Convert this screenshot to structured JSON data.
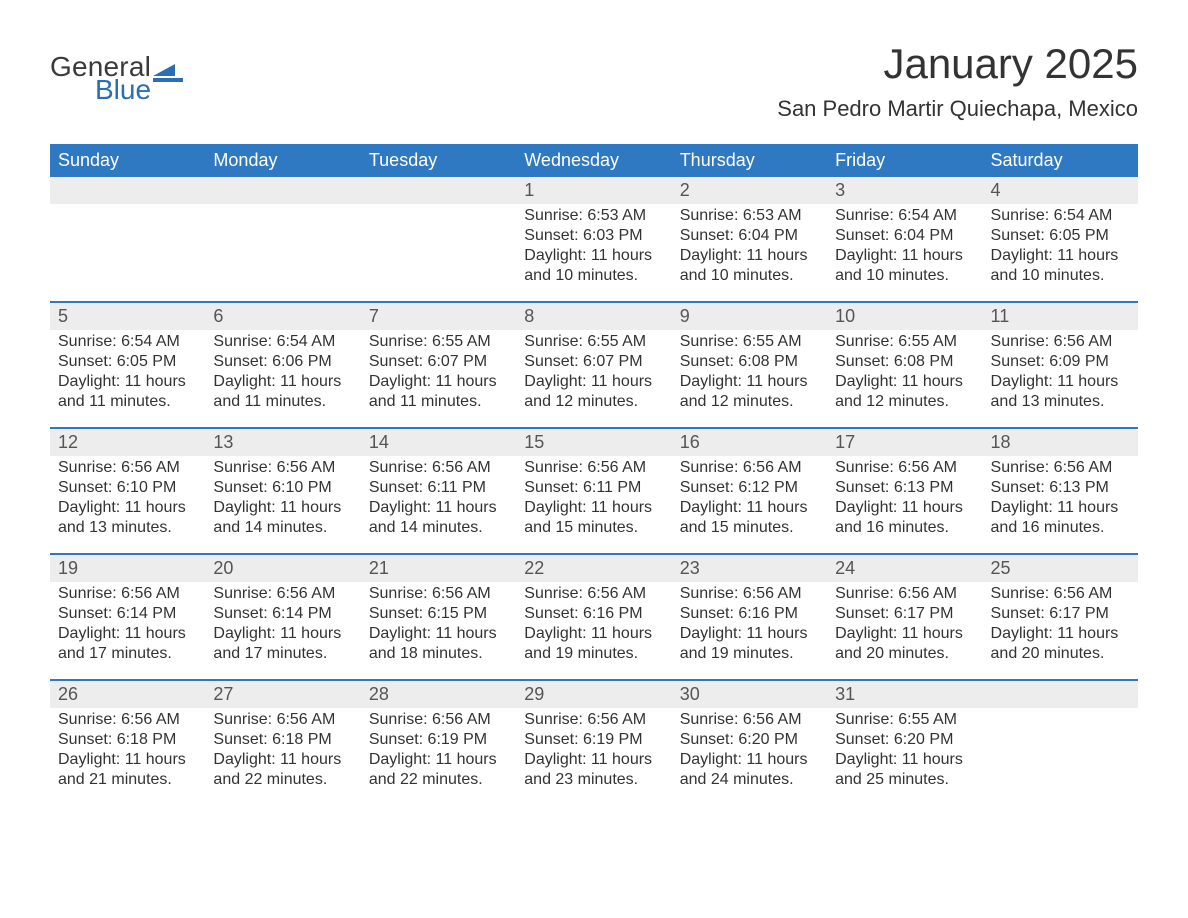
{
  "brand": {
    "word1": "General",
    "word2": "Blue"
  },
  "title": "January 2025",
  "location": "San Pedro Martir Quiechapa, Mexico",
  "colors": {
    "header_bg": "#2f79c2",
    "header_text": "#ffffff",
    "daynum_bg": "#ededed",
    "row_border": "#2f79c2",
    "text": "#333333",
    "brand_blue": "#2a6fb5"
  },
  "weekdays": [
    "Sunday",
    "Monday",
    "Tuesday",
    "Wednesday",
    "Thursday",
    "Friday",
    "Saturday"
  ],
  "weeks": [
    [
      null,
      null,
      null,
      {
        "n": "1",
        "sunrise": "Sunrise: 6:53 AM",
        "sunset": "Sunset: 6:03 PM",
        "d1": "Daylight: 11 hours",
        "d2": "and 10 minutes."
      },
      {
        "n": "2",
        "sunrise": "Sunrise: 6:53 AM",
        "sunset": "Sunset: 6:04 PM",
        "d1": "Daylight: 11 hours",
        "d2": "and 10 minutes."
      },
      {
        "n": "3",
        "sunrise": "Sunrise: 6:54 AM",
        "sunset": "Sunset: 6:04 PM",
        "d1": "Daylight: 11 hours",
        "d2": "and 10 minutes."
      },
      {
        "n": "4",
        "sunrise": "Sunrise: 6:54 AM",
        "sunset": "Sunset: 6:05 PM",
        "d1": "Daylight: 11 hours",
        "d2": "and 10 minutes."
      }
    ],
    [
      {
        "n": "5",
        "sunrise": "Sunrise: 6:54 AM",
        "sunset": "Sunset: 6:05 PM",
        "d1": "Daylight: 11 hours",
        "d2": "and 11 minutes."
      },
      {
        "n": "6",
        "sunrise": "Sunrise: 6:54 AM",
        "sunset": "Sunset: 6:06 PM",
        "d1": "Daylight: 11 hours",
        "d2": "and 11 minutes."
      },
      {
        "n": "7",
        "sunrise": "Sunrise: 6:55 AM",
        "sunset": "Sunset: 6:07 PM",
        "d1": "Daylight: 11 hours",
        "d2": "and 11 minutes."
      },
      {
        "n": "8",
        "sunrise": "Sunrise: 6:55 AM",
        "sunset": "Sunset: 6:07 PM",
        "d1": "Daylight: 11 hours",
        "d2": "and 12 minutes."
      },
      {
        "n": "9",
        "sunrise": "Sunrise: 6:55 AM",
        "sunset": "Sunset: 6:08 PM",
        "d1": "Daylight: 11 hours",
        "d2": "and 12 minutes."
      },
      {
        "n": "10",
        "sunrise": "Sunrise: 6:55 AM",
        "sunset": "Sunset: 6:08 PM",
        "d1": "Daylight: 11 hours",
        "d2": "and 12 minutes."
      },
      {
        "n": "11",
        "sunrise": "Sunrise: 6:56 AM",
        "sunset": "Sunset: 6:09 PM",
        "d1": "Daylight: 11 hours",
        "d2": "and 13 minutes."
      }
    ],
    [
      {
        "n": "12",
        "sunrise": "Sunrise: 6:56 AM",
        "sunset": "Sunset: 6:10 PM",
        "d1": "Daylight: 11 hours",
        "d2": "and 13 minutes."
      },
      {
        "n": "13",
        "sunrise": "Sunrise: 6:56 AM",
        "sunset": "Sunset: 6:10 PM",
        "d1": "Daylight: 11 hours",
        "d2": "and 14 minutes."
      },
      {
        "n": "14",
        "sunrise": "Sunrise: 6:56 AM",
        "sunset": "Sunset: 6:11 PM",
        "d1": "Daylight: 11 hours",
        "d2": "and 14 minutes."
      },
      {
        "n": "15",
        "sunrise": "Sunrise: 6:56 AM",
        "sunset": "Sunset: 6:11 PM",
        "d1": "Daylight: 11 hours",
        "d2": "and 15 minutes."
      },
      {
        "n": "16",
        "sunrise": "Sunrise: 6:56 AM",
        "sunset": "Sunset: 6:12 PM",
        "d1": "Daylight: 11 hours",
        "d2": "and 15 minutes."
      },
      {
        "n": "17",
        "sunrise": "Sunrise: 6:56 AM",
        "sunset": "Sunset: 6:13 PM",
        "d1": "Daylight: 11 hours",
        "d2": "and 16 minutes."
      },
      {
        "n": "18",
        "sunrise": "Sunrise: 6:56 AM",
        "sunset": "Sunset: 6:13 PM",
        "d1": "Daylight: 11 hours",
        "d2": "and 16 minutes."
      }
    ],
    [
      {
        "n": "19",
        "sunrise": "Sunrise: 6:56 AM",
        "sunset": "Sunset: 6:14 PM",
        "d1": "Daylight: 11 hours",
        "d2": "and 17 minutes."
      },
      {
        "n": "20",
        "sunrise": "Sunrise: 6:56 AM",
        "sunset": "Sunset: 6:14 PM",
        "d1": "Daylight: 11 hours",
        "d2": "and 17 minutes."
      },
      {
        "n": "21",
        "sunrise": "Sunrise: 6:56 AM",
        "sunset": "Sunset: 6:15 PM",
        "d1": "Daylight: 11 hours",
        "d2": "and 18 minutes."
      },
      {
        "n": "22",
        "sunrise": "Sunrise: 6:56 AM",
        "sunset": "Sunset: 6:16 PM",
        "d1": "Daylight: 11 hours",
        "d2": "and 19 minutes."
      },
      {
        "n": "23",
        "sunrise": "Sunrise: 6:56 AM",
        "sunset": "Sunset: 6:16 PM",
        "d1": "Daylight: 11 hours",
        "d2": "and 19 minutes."
      },
      {
        "n": "24",
        "sunrise": "Sunrise: 6:56 AM",
        "sunset": "Sunset: 6:17 PM",
        "d1": "Daylight: 11 hours",
        "d2": "and 20 minutes."
      },
      {
        "n": "25",
        "sunrise": "Sunrise: 6:56 AM",
        "sunset": "Sunset: 6:17 PM",
        "d1": "Daylight: 11 hours",
        "d2": "and 20 minutes."
      }
    ],
    [
      {
        "n": "26",
        "sunrise": "Sunrise: 6:56 AM",
        "sunset": "Sunset: 6:18 PM",
        "d1": "Daylight: 11 hours",
        "d2": "and 21 minutes."
      },
      {
        "n": "27",
        "sunrise": "Sunrise: 6:56 AM",
        "sunset": "Sunset: 6:18 PM",
        "d1": "Daylight: 11 hours",
        "d2": "and 22 minutes."
      },
      {
        "n": "28",
        "sunrise": "Sunrise: 6:56 AM",
        "sunset": "Sunset: 6:19 PM",
        "d1": "Daylight: 11 hours",
        "d2": "and 22 minutes."
      },
      {
        "n": "29",
        "sunrise": "Sunrise: 6:56 AM",
        "sunset": "Sunset: 6:19 PM",
        "d1": "Daylight: 11 hours",
        "d2": "and 23 minutes."
      },
      {
        "n": "30",
        "sunrise": "Sunrise: 6:56 AM",
        "sunset": "Sunset: 6:20 PM",
        "d1": "Daylight: 11 hours",
        "d2": "and 24 minutes."
      },
      {
        "n": "31",
        "sunrise": "Sunrise: 6:55 AM",
        "sunset": "Sunset: 6:20 PM",
        "d1": "Daylight: 11 hours",
        "d2": "and 25 minutes."
      },
      null
    ]
  ]
}
